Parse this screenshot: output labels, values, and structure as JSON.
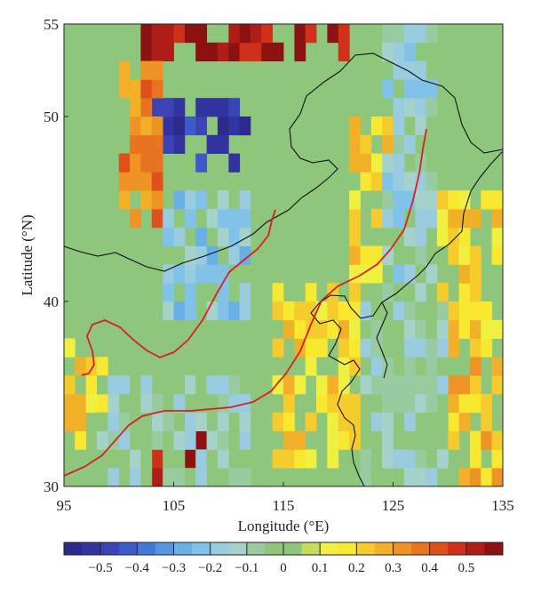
{
  "chart_data": {
    "type": "heatmap",
    "xlabel": "Longitude (°E)",
    "ylabel": "Latitude (°N)",
    "xlim": [
      95,
      135
    ],
    "ylim": [
      30,
      55
    ],
    "x_ticks": [
      "95",
      "105",
      "115",
      "125",
      "135"
    ],
    "y_ticks": [
      "30",
      "40",
      "50",
      "55"
    ],
    "colorbar": {
      "ticks": [
        "−0.5",
        "−0.4",
        "−0.3",
        "−0.2",
        "−0.1",
        "0",
        "0.1",
        "0.2",
        "0.3",
        "0.4",
        "0.5"
      ],
      "tick_values": [
        -0.5,
        -0.4,
        -0.3,
        -0.2,
        -0.1,
        0,
        0.1,
        0.2,
        0.3,
        0.4,
        0.5
      ],
      "range": [
        -0.6,
        0.6
      ],
      "steps": 24,
      "colors": [
        "#2c2a8c",
        "#3434a0",
        "#3a44b4",
        "#3c5ac8",
        "#4478d8",
        "#5496e0",
        "#68b0e6",
        "#80c2e8",
        "#98ccde",
        "#a6d2cc",
        "#98cca0",
        "#8ec67c",
        "#8ec67c",
        "#c4dc5c",
        "#f0f040",
        "#f8e830",
        "#f6cc2c",
        "#f2b028",
        "#ee9424",
        "#e87420",
        "#e0501c",
        "#d0301a",
        "#b01c16",
        "#8c1212"
      ]
    },
    "cell_size_deg": [
      1,
      1
    ],
    "value_scale_note_color_background": "#8ec67c",
    "anomaly_regions": [
      {
        "name": "north-blue",
        "lon": [
          103,
          112
        ],
        "lat": [
          47,
          51
        ],
        "value": -0.5
      },
      {
        "name": "northeast-top-red",
        "lon": [
          102,
          121
        ],
        "lat": [
          53,
          55
        ],
        "value": 0.55
      },
      {
        "name": "mongolia-orange",
        "lon": [
          100,
          104
        ],
        "lat": [
          44,
          53
        ],
        "value": 0.35
      },
      {
        "name": "central-lightblue",
        "lon": [
          104,
          112
        ],
        "lat": [
          39,
          46
        ],
        "value": -0.2
      },
      {
        "name": "northeast-yellow",
        "lon": [
          121,
          125
        ],
        "lat": [
          41,
          50
        ],
        "value": 0.2
      },
      {
        "name": "manchuria-blue",
        "lon": [
          124,
          129
        ],
        "lat": [
          40,
          55
        ],
        "value": -0.15
      },
      {
        "name": "east-coast-yellow",
        "lon": [
          129,
          135
        ],
        "lat": [
          37,
          46
        ],
        "value": 0.2
      },
      {
        "name": "northchina-yellow",
        "lon": [
          114,
          122
        ],
        "lat": [
          31,
          41
        ],
        "value": 0.2
      },
      {
        "name": "southwest-yellow",
        "lon": [
          95,
          99
        ],
        "lat": [
          32,
          38
        ],
        "value": 0.2
      },
      {
        "name": "south-red",
        "lon": [
          103,
          108
        ],
        "lat": [
          30,
          34
        ],
        "value": 0.5
      },
      {
        "name": "southeast-yellow",
        "lon": [
          130,
          135
        ],
        "lat": [
          30,
          37
        ],
        "value": 0.25
      },
      {
        "name": "central-south-lightblue",
        "lon": [
          98,
          112
        ],
        "lat": [
          30,
          36
        ],
        "value": -0.1
      },
      {
        "name": "east-sea-lightblue",
        "lon": [
          122,
          130
        ],
        "lat": [
          30,
          40
        ],
        "value": -0.1
      }
    ]
  }
}
